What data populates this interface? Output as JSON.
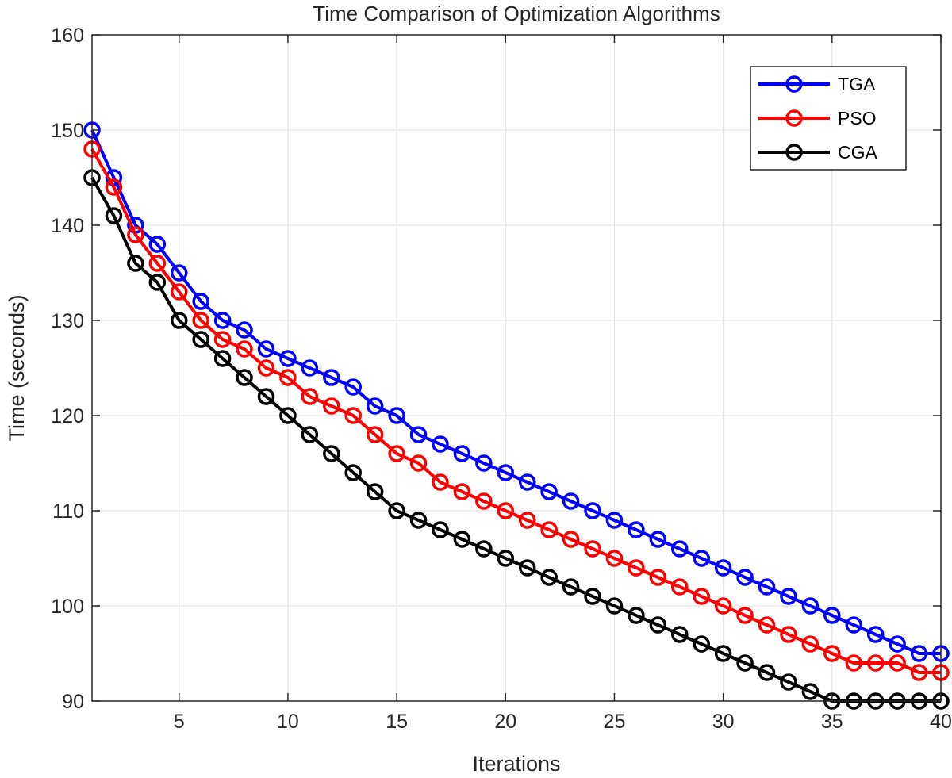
{
  "chart_data": {
    "type": "line",
    "title": "Time Comparison of Optimization Algorithms",
    "xlabel": "Iterations",
    "ylabel": "Time (seconds)",
    "xlim": [
      1,
      40
    ],
    "ylim": [
      90,
      160
    ],
    "xticks": [
      5,
      10,
      15,
      20,
      25,
      30,
      35,
      40
    ],
    "yticks": [
      90,
      100,
      110,
      120,
      130,
      140,
      150,
      160
    ],
    "grid": true,
    "legend_position": "top-right",
    "x": [
      1,
      2,
      3,
      4,
      5,
      6,
      7,
      8,
      9,
      10,
      11,
      12,
      13,
      14,
      15,
      16,
      17,
      18,
      19,
      20,
      21,
      22,
      23,
      24,
      25,
      26,
      27,
      28,
      29,
      30,
      31,
      32,
      33,
      34,
      35,
      36,
      37,
      38,
      39,
      40
    ],
    "series": [
      {
        "name": "TGA",
        "color": "#0000ff",
        "marker": "circle",
        "values": [
          150,
          145,
          140,
          138,
          135,
          132,
          130,
          129,
          127,
          126,
          125,
          124,
          123,
          121,
          120,
          118,
          117,
          116,
          115,
          114,
          113,
          112,
          111,
          110,
          109,
          108,
          107,
          106,
          105,
          104,
          103,
          102,
          101,
          100,
          99,
          98,
          97,
          96,
          95,
          95
        ]
      },
      {
        "name": "PSO",
        "color": "#ff0000",
        "marker": "circle",
        "values": [
          148,
          144,
          139,
          136,
          133,
          130,
          128,
          127,
          125,
          124,
          122,
          121,
          120,
          118,
          116,
          115,
          113,
          112,
          111,
          110,
          109,
          108,
          107,
          106,
          105,
          104,
          103,
          102,
          101,
          100,
          99,
          98,
          97,
          96,
          95,
          94,
          94,
          94,
          93,
          93
        ]
      },
      {
        "name": "CGA",
        "color": "#000000",
        "marker": "circle",
        "values": [
          145,
          141,
          136,
          134,
          130,
          128,
          126,
          124,
          122,
          120,
          118,
          116,
          114,
          112,
          110,
          109,
          108,
          107,
          106,
          105,
          104,
          103,
          102,
          101,
          100,
          99,
          98,
          97,
          96,
          95,
          94,
          93,
          92,
          91,
          90,
          90,
          90,
          90,
          90,
          90
        ]
      }
    ]
  }
}
